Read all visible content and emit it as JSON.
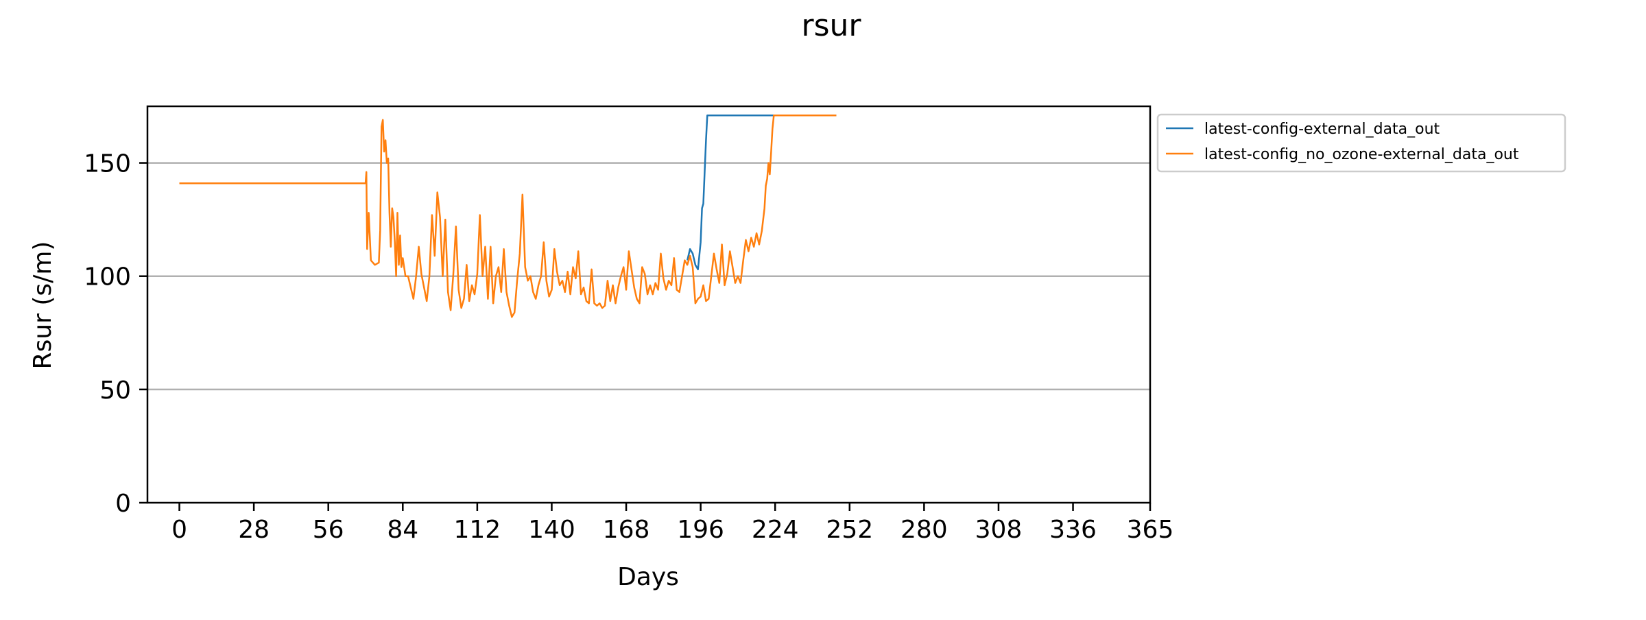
{
  "chart_data": {
    "type": "line",
    "title": "rsur",
    "xlabel": "Days",
    "ylabel": "Rsur (s/m)",
    "xlim": [
      -12,
      365
    ],
    "ylim": [
      0,
      175
    ],
    "xticks": [
      0,
      28,
      56,
      84,
      112,
      140,
      168,
      196,
      224,
      252,
      280,
      308,
      336,
      365
    ],
    "yticks": [
      0,
      50,
      100,
      150
    ],
    "grid": "horizontal",
    "legend_position": "outside-top-right",
    "series": [
      {
        "name": "latest-config-external_data_out",
        "color": "#1f77b4",
        "points": [
          [
            191,
            107
          ],
          [
            192,
            112
          ],
          [
            193,
            110
          ],
          [
            194,
            105
          ],
          [
            195,
            103
          ],
          [
            196,
            115
          ],
          [
            196.5,
            130
          ],
          [
            197,
            132
          ],
          [
            198,
            160
          ],
          [
            198.5,
            171
          ],
          [
            199,
            171
          ],
          [
            210,
            171
          ],
          [
            222,
            171
          ],
          [
            234,
            171
          ],
          [
            247,
            171
          ]
        ]
      },
      {
        "name": "latest-config_no_ozone-external_data_out",
        "color": "#ff7f0e",
        "points": [
          [
            0,
            141
          ],
          [
            70,
            141
          ],
          [
            70.3,
            146
          ],
          [
            70.6,
            112
          ],
          [
            71.2,
            128
          ],
          [
            72,
            107
          ],
          [
            73.5,
            105
          ],
          [
            75,
            106
          ],
          [
            75.5,
            120
          ],
          [
            76,
            166
          ],
          [
            76.5,
            169
          ],
          [
            77,
            155
          ],
          [
            77.5,
            160
          ],
          [
            78,
            150
          ],
          [
            78.5,
            152
          ],
          [
            79,
            128
          ],
          [
            79.5,
            113
          ],
          [
            80,
            130
          ],
          [
            80.5,
            126
          ],
          [
            81,
            115
          ],
          [
            81.5,
            100
          ],
          [
            82,
            128
          ],
          [
            82.5,
            105
          ],
          [
            83,
            118
          ],
          [
            83.5,
            104
          ],
          [
            84,
            108
          ],
          [
            85,
            100
          ],
          [
            86,
            100
          ],
          [
            87,
            95
          ],
          [
            88,
            90
          ],
          [
            89,
            100
          ],
          [
            90,
            113
          ],
          [
            91,
            101
          ],
          [
            92,
            95
          ],
          [
            93,
            89
          ],
          [
            94,
            100
          ],
          [
            95,
            127
          ],
          [
            96,
            109
          ],
          [
            97,
            137
          ],
          [
            98,
            126
          ],
          [
            99,
            100
          ],
          [
            100,
            125
          ],
          [
            101,
            93
          ],
          [
            102,
            85
          ],
          [
            103,
            101
          ],
          [
            104,
            122
          ],
          [
            105,
            94
          ],
          [
            106,
            86
          ],
          [
            107,
            90
          ],
          [
            108,
            105
          ],
          [
            109,
            89
          ],
          [
            110,
            96
          ],
          [
            111,
            92
          ],
          [
            112,
            101
          ],
          [
            113,
            127
          ],
          [
            114,
            100
          ],
          [
            115,
            113
          ],
          [
            116,
            90
          ],
          [
            117,
            113
          ],
          [
            118,
            88
          ],
          [
            119,
            100
          ],
          [
            120,
            104
          ],
          [
            121,
            93
          ],
          [
            122,
            112
          ],
          [
            123,
            93
          ],
          [
            124,
            87
          ],
          [
            125,
            82
          ],
          [
            126,
            84
          ],
          [
            127,
            98
          ],
          [
            128,
            110
          ],
          [
            129,
            136
          ],
          [
            130,
            104
          ],
          [
            131,
            98
          ],
          [
            132,
            100
          ],
          [
            133,
            93
          ],
          [
            134,
            90
          ],
          [
            135,
            96
          ],
          [
            136,
            100
          ],
          [
            137,
            115
          ],
          [
            138,
            98
          ],
          [
            139,
            91
          ],
          [
            140,
            94
          ],
          [
            141,
            112
          ],
          [
            142,
            102
          ],
          [
            143,
            96
          ],
          [
            144,
            98
          ],
          [
            145,
            93
          ],
          [
            146,
            102
          ],
          [
            147,
            92
          ],
          [
            148,
            104
          ],
          [
            149,
            99
          ],
          [
            150,
            111
          ],
          [
            151,
            92
          ],
          [
            152,
            95
          ],
          [
            153,
            89
          ],
          [
            154,
            88
          ],
          [
            155,
            103
          ],
          [
            156,
            88
          ],
          [
            157,
            87
          ],
          [
            158,
            88
          ],
          [
            159,
            86
          ],
          [
            160,
            87
          ],
          [
            161,
            98
          ],
          [
            162,
            89
          ],
          [
            163,
            96
          ],
          [
            164,
            88
          ],
          [
            165,
            95
          ],
          [
            166,
            100
          ],
          [
            167,
            104
          ],
          [
            168,
            94
          ],
          [
            169,
            111
          ],
          [
            170,
            103
          ],
          [
            171,
            95
          ],
          [
            172,
            90
          ],
          [
            173,
            88
          ],
          [
            174,
            104
          ],
          [
            175,
            101
          ],
          [
            176,
            92
          ],
          [
            177,
            96
          ],
          [
            178,
            92
          ],
          [
            179,
            97
          ],
          [
            180,
            94
          ],
          [
            181,
            110
          ],
          [
            182,
            99
          ],
          [
            183,
            94
          ],
          [
            184,
            98
          ],
          [
            185,
            96
          ],
          [
            186,
            108
          ],
          [
            187,
            94
          ],
          [
            188,
            93
          ],
          [
            189,
            100
          ],
          [
            190,
            107
          ],
          [
            191,
            105
          ],
          [
            192,
            109
          ],
          [
            193,
            104
          ],
          [
            194,
            88
          ],
          [
            195,
            90
          ],
          [
            196,
            91
          ],
          [
            197,
            96
          ],
          [
            198,
            89
          ],
          [
            199,
            90
          ],
          [
            200,
            100
          ],
          [
            201,
            110
          ],
          [
            202,
            103
          ],
          [
            203,
            97
          ],
          [
            204,
            114
          ],
          [
            205,
            96
          ],
          [
            206,
            101
          ],
          [
            207,
            111
          ],
          [
            208,
            104
          ],
          [
            209,
            97
          ],
          [
            210,
            100
          ],
          [
            211,
            97
          ],
          [
            212,
            107
          ],
          [
            213,
            116
          ],
          [
            214,
            111
          ],
          [
            215,
            117
          ],
          [
            216,
            113
          ],
          [
            217,
            119
          ],
          [
            218,
            114
          ],
          [
            219,
            120
          ],
          [
            220,
            130
          ],
          [
            220.5,
            140
          ],
          [
            221,
            143
          ],
          [
            221.5,
            150
          ],
          [
            222,
            145
          ],
          [
            222.5,
            155
          ],
          [
            223,
            165
          ],
          [
            223.5,
            171
          ],
          [
            230,
            171
          ],
          [
            240,
            171
          ],
          [
            247,
            171
          ]
        ]
      }
    ]
  }
}
